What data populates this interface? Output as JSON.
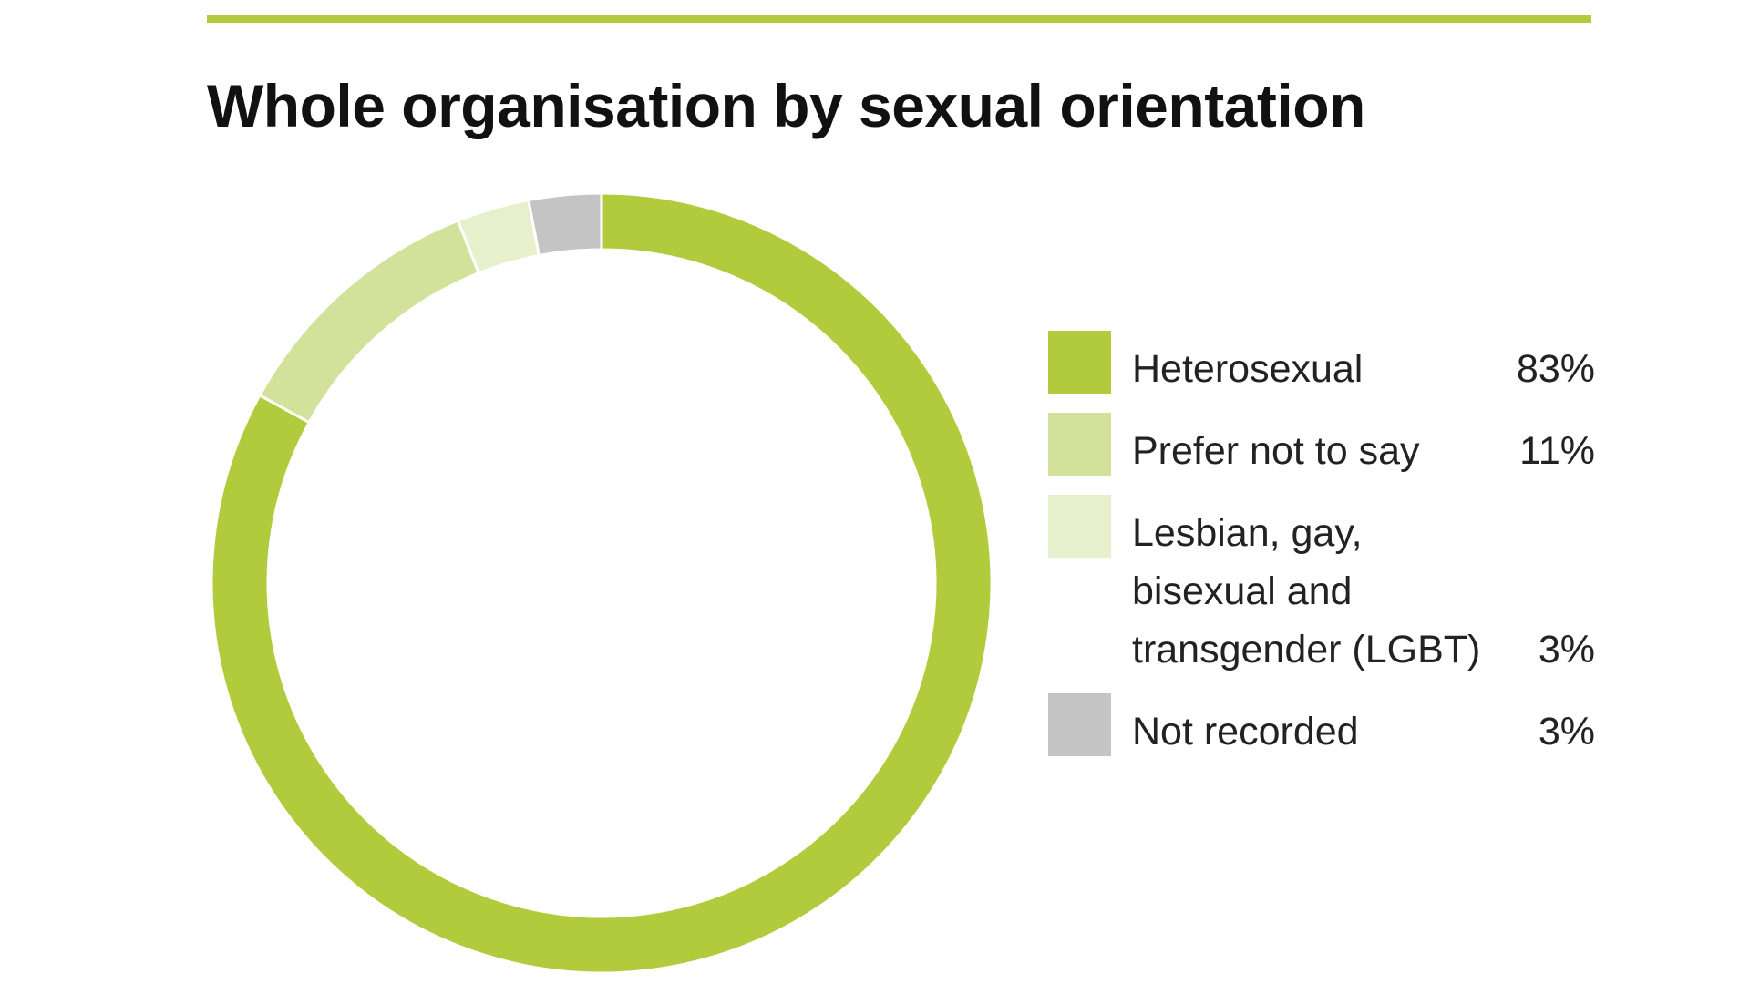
{
  "colors": {
    "accent": "#b1cb3d",
    "heterosexual": "#b1cb3d",
    "prefer_not": "#d2e29a",
    "lgbt": "#e7f0cc",
    "not_recorded": "#c4c4c4",
    "title": "#111111"
  },
  "chart_data": {
    "type": "pie",
    "style": "donut",
    "title": "Whole organisation by sexual orientation",
    "start_angle_deg": 0,
    "direction": "clockwise",
    "legend_position": "right",
    "slices": [
      {
        "label": "Heterosexual",
        "value": 83,
        "display": "83%",
        "color": "#b1cb3d"
      },
      {
        "label": "Prefer not to say",
        "value": 11,
        "display": "11%",
        "color": "#d2e29a"
      },
      {
        "label": "Lesbian, gay, bisexual and transgender (LGBT)",
        "value": 3,
        "display": "3%",
        "color": "#e7f0cc"
      },
      {
        "label": "Not recorded",
        "value": 3,
        "display": "3%",
        "color": "#c4c4c4"
      }
    ]
  }
}
